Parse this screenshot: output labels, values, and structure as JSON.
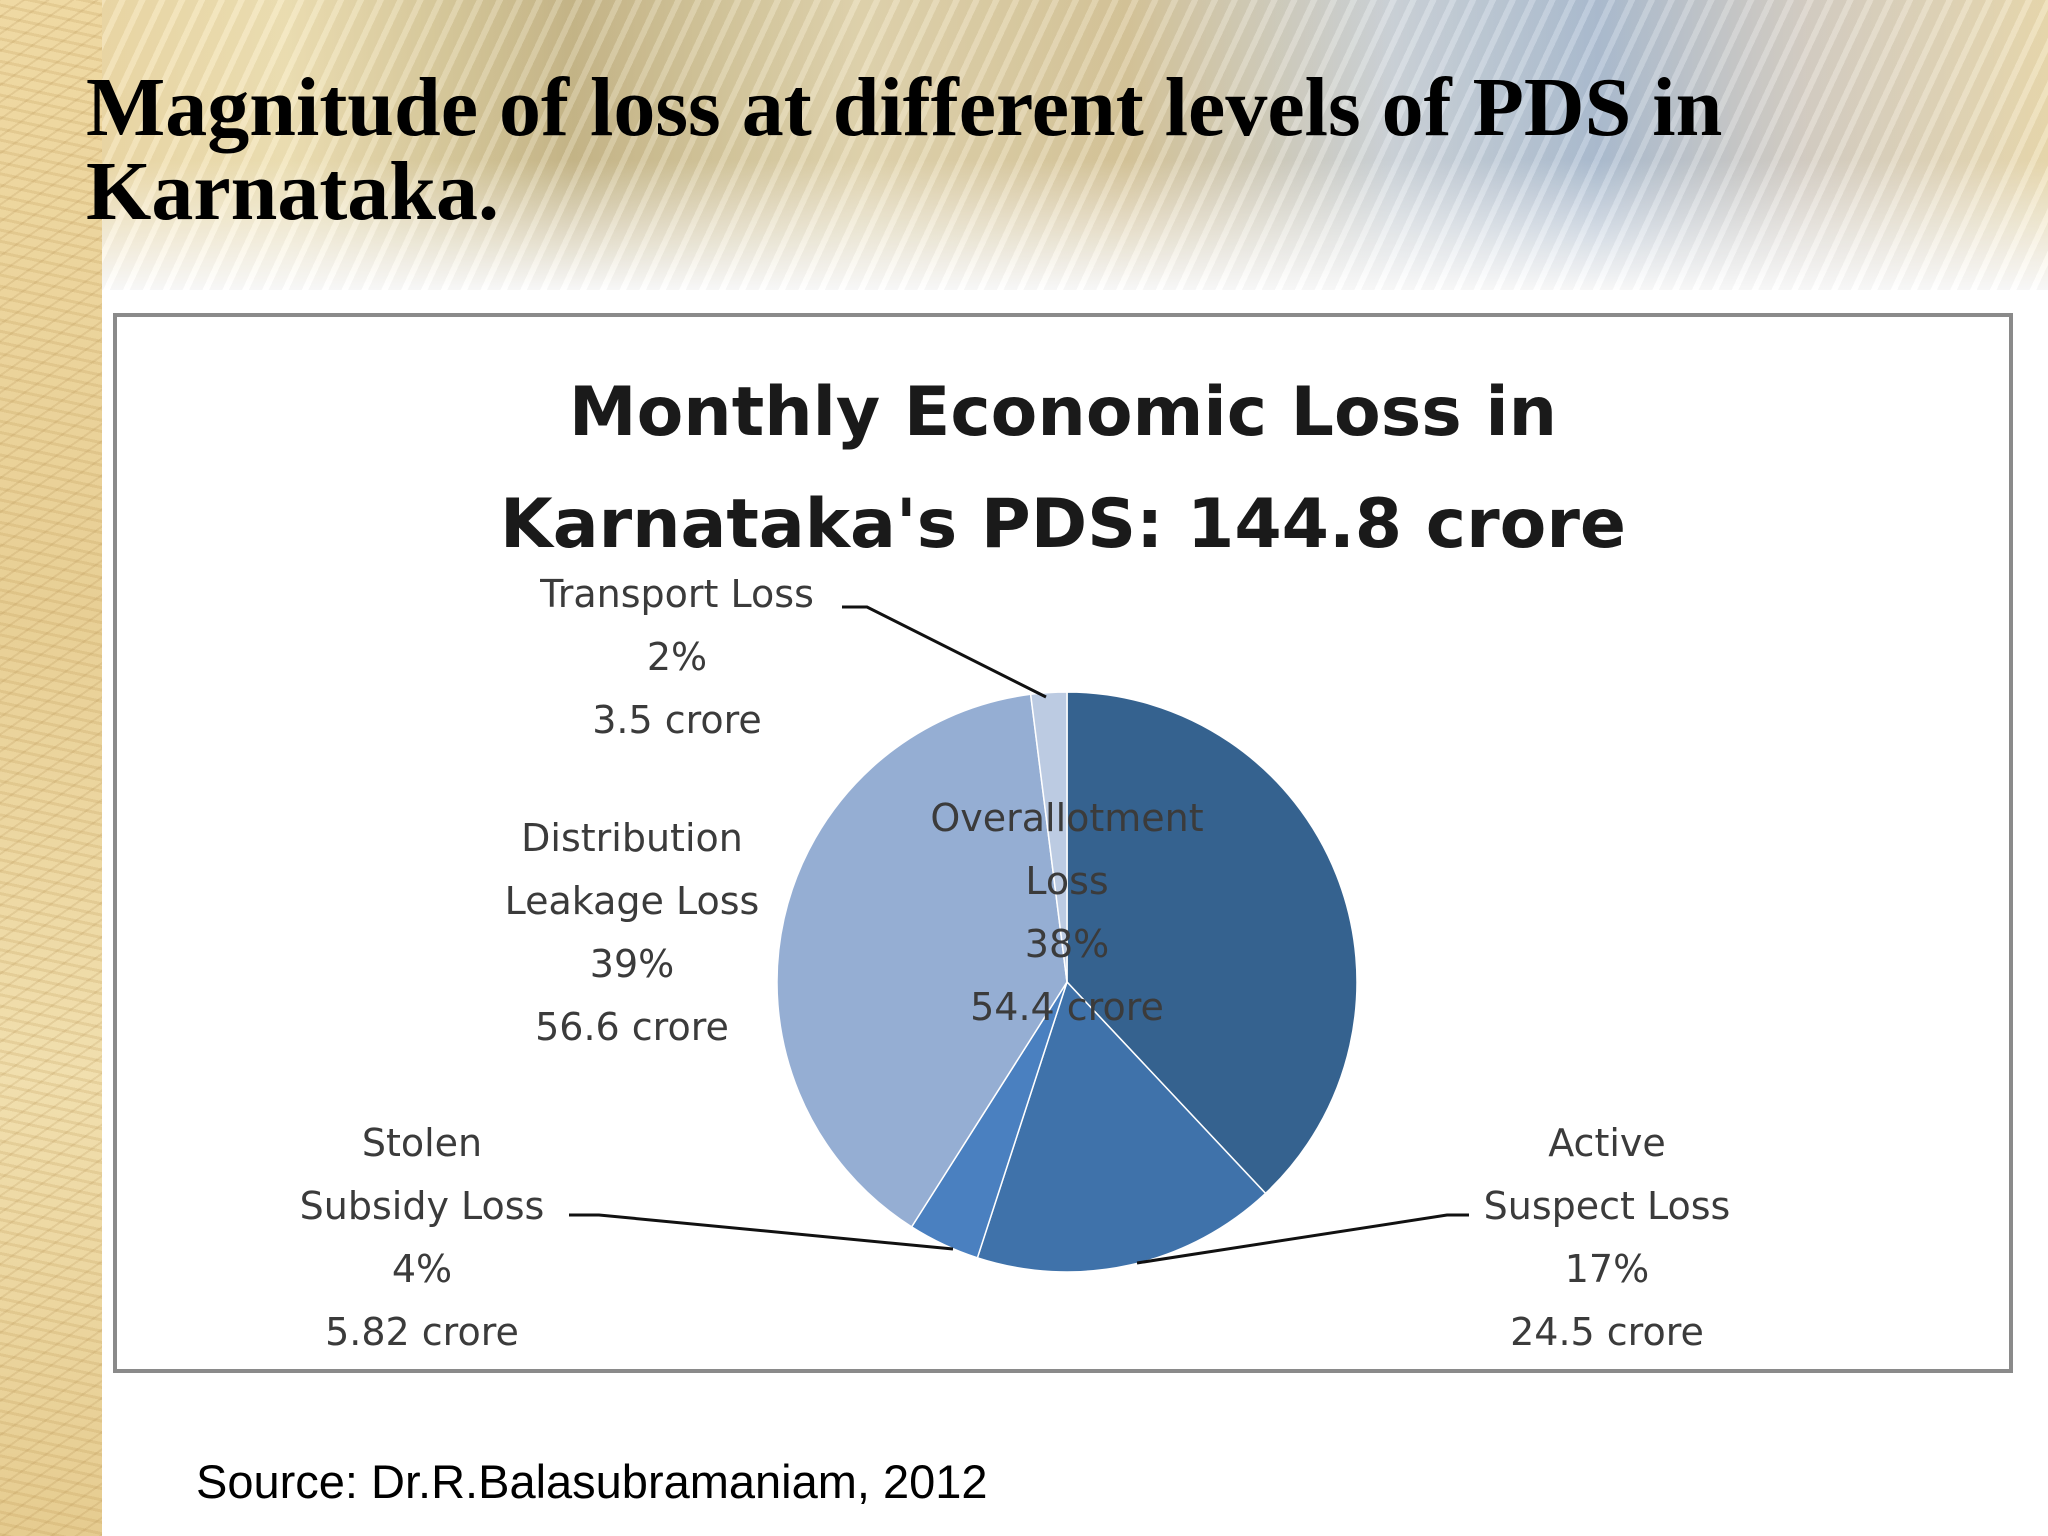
{
  "slide": {
    "title": "Magnitude of loss at different levels of PDS in Karnataka.",
    "source": "Source: Dr.R.Balasubramaniam, 2012"
  },
  "chart_data": {
    "type": "pie",
    "title_line1": "Monthly Economic Loss in",
    "title_line2": "Karnataka's PDS: 144.8 crore",
    "slices": [
      {
        "name": "Overallotment Loss",
        "label_lines": [
          "Overallotment",
          "Loss"
        ],
        "percent": 38,
        "percent_label": "38%",
        "value": 54.4,
        "value_label": "54.4 crore",
        "color": "#35628f"
      },
      {
        "name": "Active Suspect Loss",
        "label_lines": [
          "Active",
          "Suspect Loss"
        ],
        "percent": 17,
        "percent_label": "17%",
        "value": 24.5,
        "value_label": "24.5 crore",
        "color": "#3f72aa"
      },
      {
        "name": "Stolen Subsidy Loss",
        "label_lines": [
          "Stolen",
          "Subsidy Loss"
        ],
        "percent": 4,
        "percent_label": "4%",
        "value": 5.82,
        "value_label": "5.82 crore",
        "color": "#4a80c0"
      },
      {
        "name": "Distribution Leakage Loss",
        "label_lines": [
          "Distribution",
          "Leakage Loss"
        ],
        "percent": 39,
        "percent_label": "39%",
        "value": 56.6,
        "value_label": "56.6 crore",
        "color": "#95aed3"
      },
      {
        "name": "Transport Loss",
        "label_lines": [
          "Transport Loss"
        ],
        "percent": 2,
        "percent_label": "2%",
        "value": 3.5,
        "value_label": "3.5 crore",
        "color": "#bccbe2"
      }
    ],
    "start": "12 o'clock",
    "direction": "clockwise",
    "legend": "none"
  }
}
